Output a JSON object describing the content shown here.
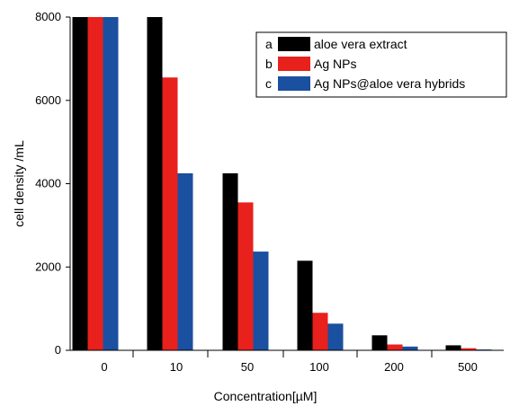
{
  "chart_data": {
    "type": "bar",
    "categories": [
      "0",
      "10",
      "50",
      "100",
      "200",
      "500"
    ],
    "series": [
      {
        "name": "aloe vera extract",
        "letter": "a",
        "color": "#000000",
        "values": [
          8000,
          8000,
          4250,
          2150,
          360,
          120
        ]
      },
      {
        "name": "Ag NPs",
        "letter": "b",
        "color": "#e8211c",
        "values": [
          8000,
          6550,
          3550,
          900,
          140,
          50
        ]
      },
      {
        "name": "Ag NPs@aloe vera hybrids",
        "letter": "c",
        "color": "#1b4fa0",
        "values": [
          8000,
          4250,
          2370,
          640,
          90,
          20
        ]
      }
    ],
    "xlabel": "Concentration[µM]",
    "ylabel": "cell density /mL",
    "ylim": [
      0,
      8000
    ],
    "yticks": [
      0,
      2000,
      4000,
      6000,
      8000
    ],
    "legend_position": "top-right",
    "grid": false
  }
}
